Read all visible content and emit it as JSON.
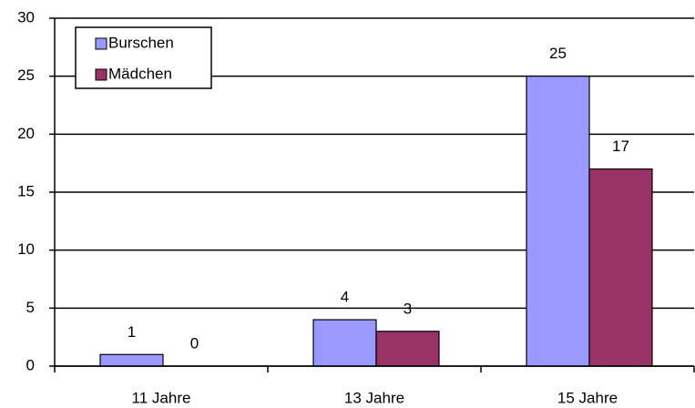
{
  "chart_data": {
    "type": "bar",
    "categories": [
      "11 Jahre",
      "13 Jahre",
      "15 Jahre"
    ],
    "series": [
      {
        "name": "Burschen",
        "color": "#9999ff",
        "values": [
          1,
          4,
          25
        ]
      },
      {
        "name": "Mädchen",
        "color": "#993366",
        "values": [
          0,
          3,
          17
        ]
      }
    ],
    "ylim": [
      0,
      30
    ],
    "yticks": [
      0,
      5,
      10,
      15,
      20,
      25,
      30
    ],
    "grid": true,
    "legend": "top-left"
  }
}
